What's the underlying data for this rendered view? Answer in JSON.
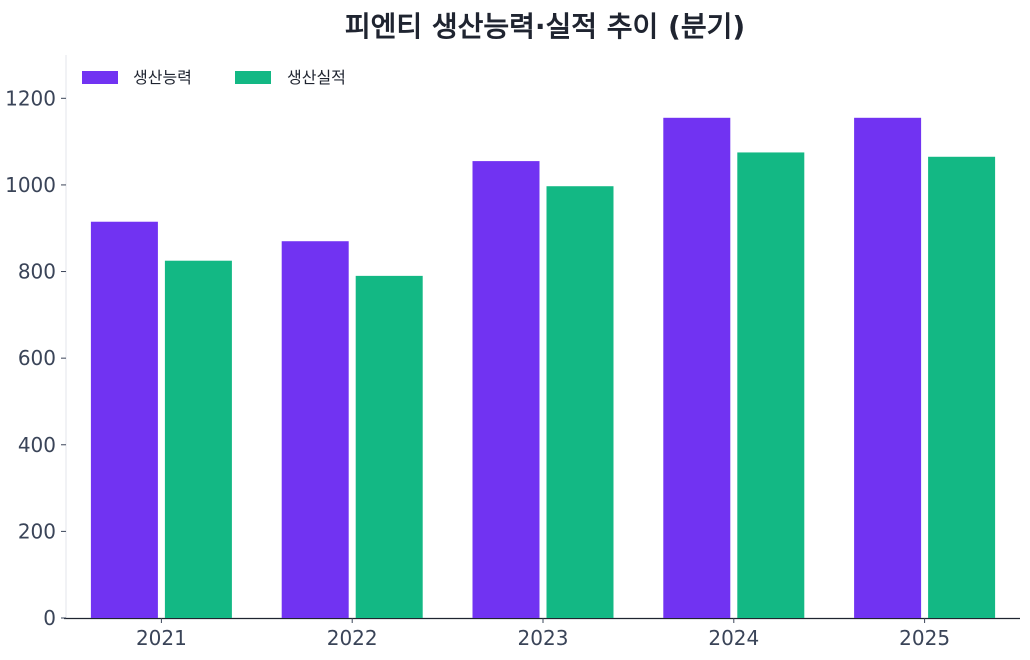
{
  "chart_data": {
    "type": "bar",
    "title": "피엔티 생산능력·실적 추이 (분기)",
    "xlabel": "",
    "ylabel": "",
    "categories": [
      "2021",
      "2022",
      "2023",
      "2024",
      "2025"
    ],
    "series": [
      {
        "name": "생산능력",
        "color": "#7133f2",
        "values": [
          915,
          870,
          1055,
          1155,
          1155
        ]
      },
      {
        "name": "생산실적",
        "color": "#13b884",
        "values": [
          825,
          790,
          997,
          1075,
          1065
        ]
      }
    ],
    "ylim": [
      0,
      1300
    ],
    "yticks": [
      0,
      200,
      400,
      600,
      800,
      1000,
      1200
    ],
    "grid": false,
    "legend": "top-left"
  }
}
